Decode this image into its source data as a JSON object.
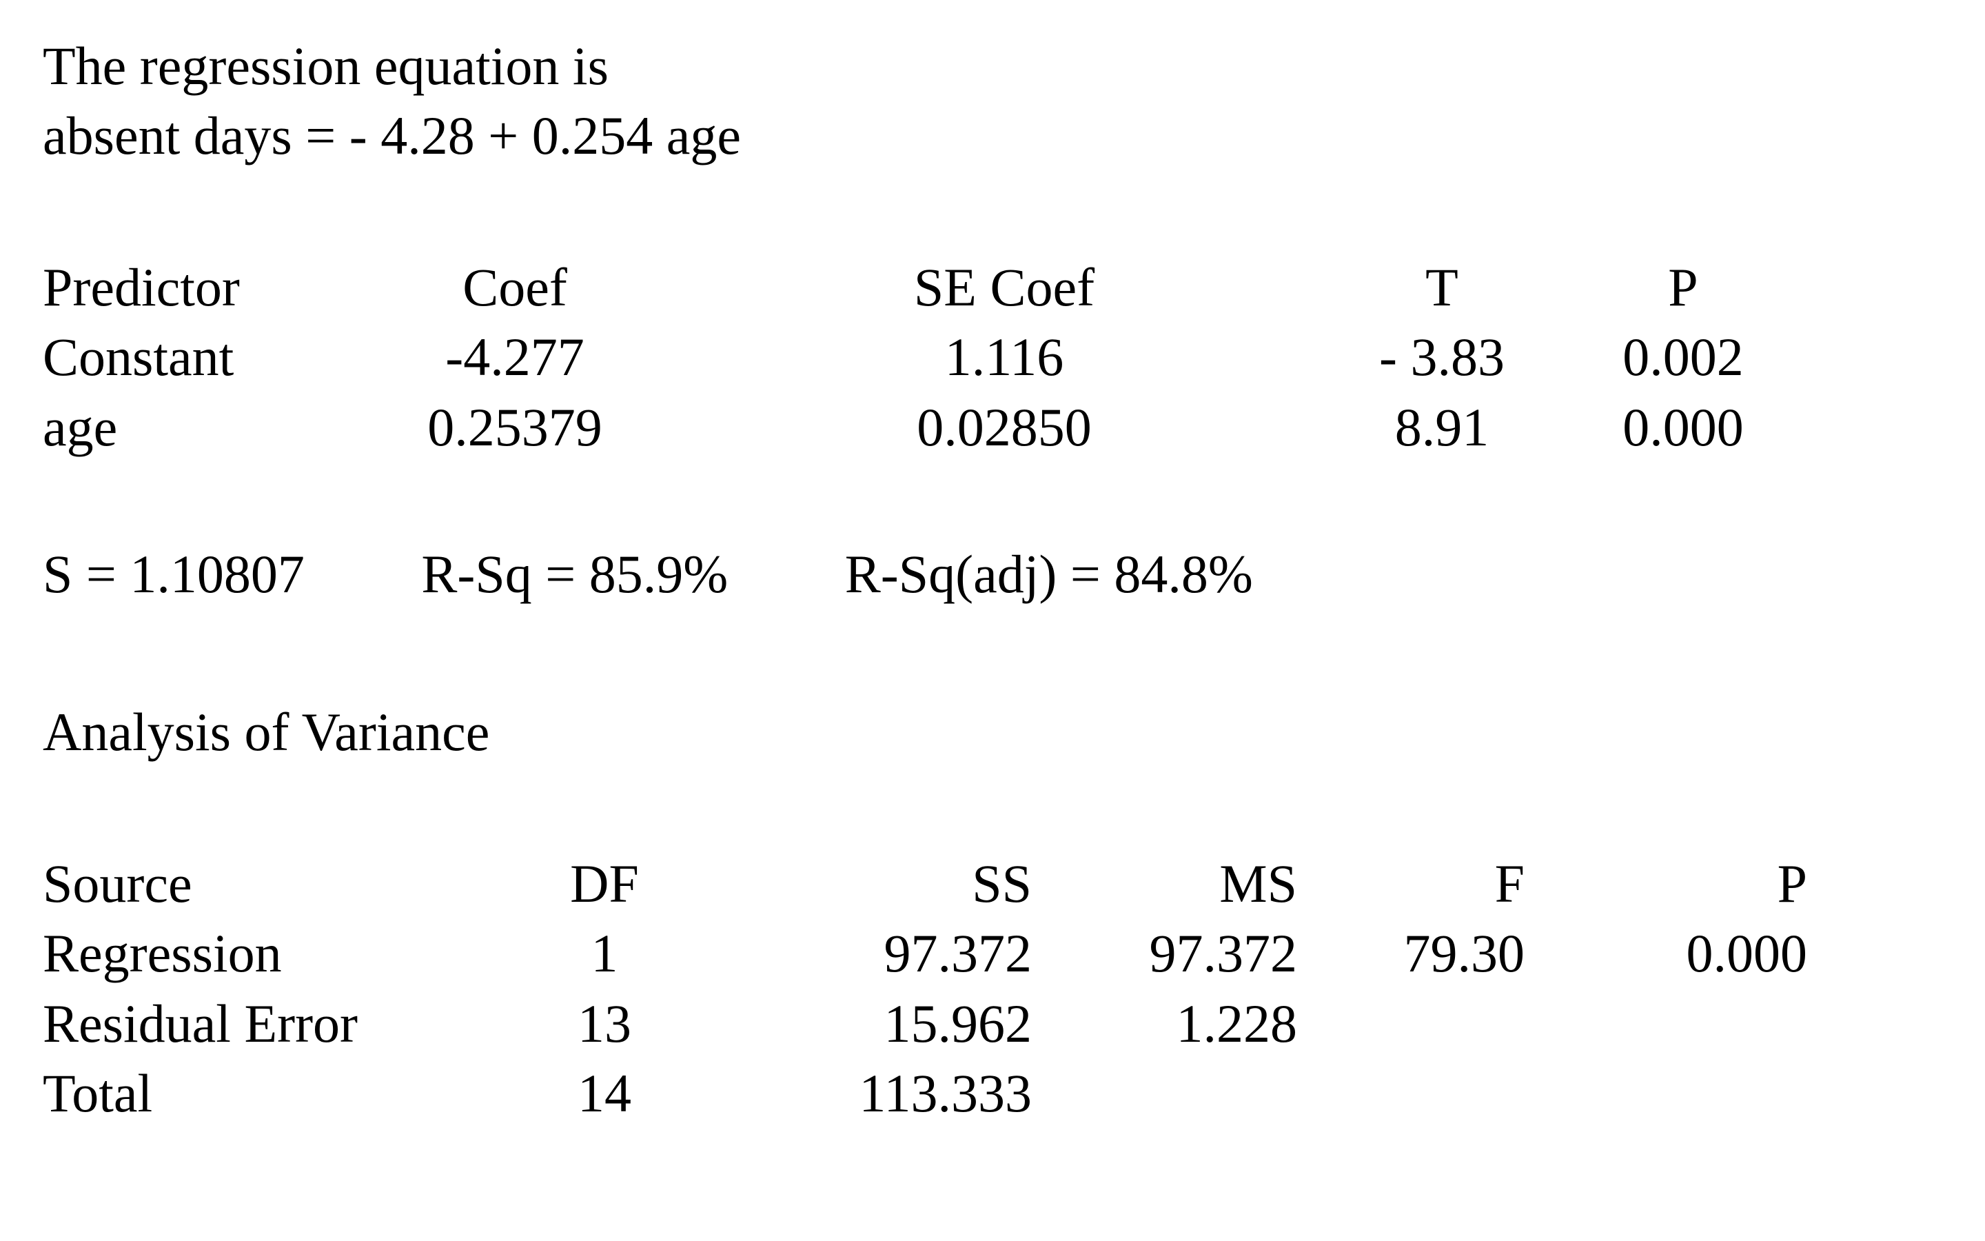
{
  "page": {
    "background": "#ffffff",
    "text_color": "#000000"
  },
  "regression": {
    "header": "The regression equation is",
    "equation": "absent days = - 4.28 + 0.254 age"
  },
  "coefficients": {
    "headers": [
      "Predictor",
      "Coef",
      "SE Coef",
      "T",
      "P"
    ],
    "rows": [
      [
        "Constant",
        "-4.277",
        "1.116",
        "- 3.83",
        "0.002"
      ],
      [
        "age",
        "0.25379",
        "0.02850",
        "8.91",
        "0.000"
      ]
    ]
  },
  "model_summary": {
    "s": "S = 1.10807",
    "r_sq": "R-Sq = 85.9%",
    "r_sq_adj": "R-Sq(adj) = 84.8%"
  },
  "anova": {
    "title": "Analysis of Variance",
    "headers": [
      "Source",
      "DF",
      "SS",
      "MS",
      "F",
      "P"
    ],
    "rows": [
      [
        "Regression",
        "1",
        "97.372",
        "97.372",
        "79.30",
        "0.000"
      ],
      [
        "Residual Error",
        "13",
        "15.962",
        "1.228",
        "",
        ""
      ],
      [
        "Total",
        "14",
        "113.333",
        "",
        "",
        ""
      ]
    ]
  }
}
